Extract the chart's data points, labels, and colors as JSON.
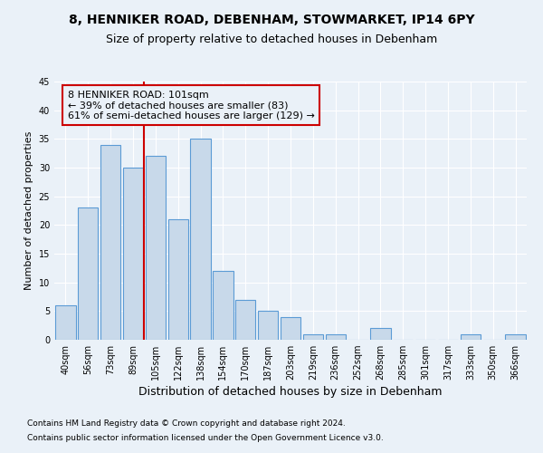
{
  "title1": "8, HENNIKER ROAD, DEBENHAM, STOWMARKET, IP14 6PY",
  "title2": "Size of property relative to detached houses in Debenham",
  "xlabel": "Distribution of detached houses by size in Debenham",
  "ylabel": "Number of detached properties",
  "bar_labels": [
    "40sqm",
    "56sqm",
    "73sqm",
    "89sqm",
    "105sqm",
    "122sqm",
    "138sqm",
    "154sqm",
    "170sqm",
    "187sqm",
    "203sqm",
    "219sqm",
    "236sqm",
    "252sqm",
    "268sqm",
    "285sqm",
    "301sqm",
    "317sqm",
    "333sqm",
    "350sqm",
    "366sqm"
  ],
  "bar_values": [
    6,
    23,
    34,
    30,
    32,
    21,
    35,
    12,
    7,
    5,
    4,
    1,
    1,
    0,
    2,
    0,
    0,
    0,
    1,
    0,
    1
  ],
  "bar_color": "#c8d9ea",
  "bar_edge_color": "#5b9bd5",
  "vline_x": 3.5,
  "annotation_text": "8 HENNIKER ROAD: 101sqm\n← 39% of detached houses are smaller (83)\n61% of semi-detached houses are larger (129) →",
  "annotation_box_edge": "#cc0000",
  "vline_color": "#cc0000",
  "ylim": [
    0,
    45
  ],
  "yticks": [
    0,
    5,
    10,
    15,
    20,
    25,
    30,
    35,
    40,
    45
  ],
  "footer1": "Contains HM Land Registry data © Crown copyright and database right 2024.",
  "footer2": "Contains public sector information licensed under the Open Government Licence v3.0.",
  "bg_color": "#eaf1f8",
  "plot_bg_color": "#eaf1f8",
  "grid_color": "#ffffff",
  "title1_fontsize": 10,
  "title2_fontsize": 9,
  "xlabel_fontsize": 9,
  "ylabel_fontsize": 8,
  "tick_fontsize": 7,
  "annotation_fontsize": 8,
  "footer_fontsize": 6.5
}
